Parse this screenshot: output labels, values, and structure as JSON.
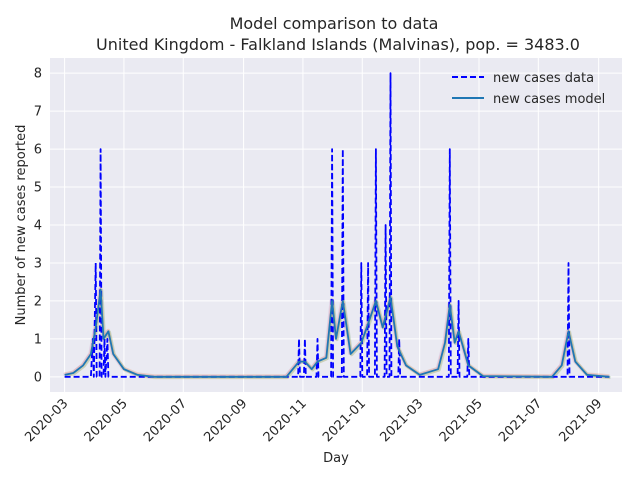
{
  "chart_data": {
    "type": "line",
    "title": "Model comparison to data",
    "subtitle": "United Kingdom - Falkland Islands (Malvinas), pop. = 3483.0",
    "xlabel": "Day",
    "ylabel": "Number of new cases reported",
    "x_range": [
      "2020-02-15",
      "2021-09-25"
    ],
    "ylim": [
      -0.4,
      8.4
    ],
    "yticks": [
      0,
      1,
      2,
      3,
      4,
      5,
      6,
      7,
      8
    ],
    "xticks": [
      "2020-03",
      "2020-05",
      "2020-07",
      "2020-09",
      "2020-11",
      "2021-01",
      "2021-03",
      "2021-05",
      "2021-07",
      "2021-09"
    ],
    "grid": true,
    "legend": {
      "position": "top-right",
      "entries": [
        {
          "label": "new cases data",
          "style": "dashed",
          "color": "#0000ff"
        },
        {
          "label": "new cases model",
          "style": "solid",
          "color": "#1f77b4"
        }
      ]
    },
    "series": [
      {
        "name": "new cases data",
        "color": "#0000ff",
        "points": [
          [
            "2020-03-01",
            0
          ],
          [
            "2020-03-28",
            0
          ],
          [
            "2020-03-30",
            1
          ],
          [
            "2020-03-31",
            0
          ],
          [
            "2020-04-02",
            3
          ],
          [
            "2020-04-03",
            0
          ],
          [
            "2020-04-06",
            0
          ],
          [
            "2020-04-07",
            6
          ],
          [
            "2020-04-08",
            0
          ],
          [
            "2020-04-10",
            0
          ],
          [
            "2020-04-11",
            1
          ],
          [
            "2020-04-12",
            0
          ],
          [
            "2020-04-14",
            1
          ],
          [
            "2020-04-15",
            0
          ],
          [
            "2020-10-27",
            0
          ],
          [
            "2020-10-28",
            1
          ],
          [
            "2020-10-29",
            0
          ],
          [
            "2020-11-02",
            0
          ],
          [
            "2020-11-03",
            1
          ],
          [
            "2020-11-04",
            0
          ],
          [
            "2020-11-15",
            0
          ],
          [
            "2020-11-16",
            1
          ],
          [
            "2020-11-17",
            0
          ],
          [
            "2020-11-30",
            0
          ],
          [
            "2020-12-01",
            6
          ],
          [
            "2020-12-02",
            0
          ],
          [
            "2020-12-11",
            0
          ],
          [
            "2020-12-12",
            6
          ],
          [
            "2020-12-13",
            0
          ],
          [
            "2020-12-30",
            0
          ],
          [
            "2020-12-31",
            3
          ],
          [
            "2021-01-01",
            0
          ],
          [
            "2021-01-06",
            0
          ],
          [
            "2021-01-07",
            3
          ],
          [
            "2021-01-08",
            0
          ],
          [
            "2021-01-14",
            0
          ],
          [
            "2021-01-15",
            6
          ],
          [
            "2021-01-16",
            0
          ],
          [
            "2021-01-24",
            0
          ],
          [
            "2021-01-25",
            4
          ],
          [
            "2021-01-26",
            0
          ],
          [
            "2021-01-29",
            0
          ],
          [
            "2021-01-30",
            8
          ],
          [
            "2021-01-31",
            0
          ],
          [
            "2021-02-07",
            0
          ],
          [
            "2021-02-08",
            1
          ],
          [
            "2021-02-09",
            0
          ],
          [
            "2021-03-31",
            0
          ],
          [
            "2021-04-01",
            6
          ],
          [
            "2021-04-02",
            0
          ],
          [
            "2021-04-09",
            0
          ],
          [
            "2021-04-10",
            2
          ],
          [
            "2021-04-11",
            0
          ],
          [
            "2021-04-19",
            0
          ],
          [
            "2021-04-20",
            1
          ],
          [
            "2021-04-21",
            0
          ],
          [
            "2021-07-31",
            0
          ],
          [
            "2021-08-01",
            3
          ],
          [
            "2021-08-02",
            0
          ],
          [
            "2021-09-12",
            0
          ]
        ]
      },
      {
        "name": "new cases model",
        "color": "#1f77b4",
        "points": [
          [
            "2020-03-01",
            0.05
          ],
          [
            "2020-03-10",
            0.1
          ],
          [
            "2020-03-20",
            0.3
          ],
          [
            "2020-03-28",
            0.6
          ],
          [
            "2020-04-02",
            1.3
          ],
          [
            "2020-04-07",
            2.3
          ],
          [
            "2020-04-10",
            1.0
          ],
          [
            "2020-04-15",
            1.2
          ],
          [
            "2020-04-20",
            0.6
          ],
          [
            "2020-05-01",
            0.2
          ],
          [
            "2020-05-15",
            0.05
          ],
          [
            "2020-06-01",
            0.0
          ],
          [
            "2020-10-15",
            0.0
          ],
          [
            "2020-10-28",
            0.4
          ],
          [
            "2020-11-03",
            0.4
          ],
          [
            "2020-11-10",
            0.2
          ],
          [
            "2020-11-16",
            0.4
          ],
          [
            "2020-11-25",
            0.5
          ],
          [
            "2020-12-01",
            2.0
          ],
          [
            "2020-12-05",
            1.0
          ],
          [
            "2020-12-12",
            2.0
          ],
          [
            "2020-12-20",
            0.6
          ],
          [
            "2020-12-31",
            0.9
          ],
          [
            "2021-01-07",
            1.4
          ],
          [
            "2021-01-15",
            2.0
          ],
          [
            "2021-01-22",
            1.3
          ],
          [
            "2021-01-30",
            2.1
          ],
          [
            "2021-02-06",
            0.8
          ],
          [
            "2021-02-15",
            0.3
          ],
          [
            "2021-03-01",
            0.05
          ],
          [
            "2021-03-20",
            0.2
          ],
          [
            "2021-03-27",
            0.9
          ],
          [
            "2021-04-01",
            1.9
          ],
          [
            "2021-04-06",
            0.9
          ],
          [
            "2021-04-10",
            1.2
          ],
          [
            "2021-04-20",
            0.3
          ],
          [
            "2021-05-05",
            0.02
          ],
          [
            "2021-07-15",
            0.0
          ],
          [
            "2021-07-25",
            0.3
          ],
          [
            "2021-08-01",
            1.2
          ],
          [
            "2021-08-08",
            0.4
          ],
          [
            "2021-08-20",
            0.05
          ],
          [
            "2021-09-12",
            0.0
          ]
        ]
      }
    ]
  }
}
